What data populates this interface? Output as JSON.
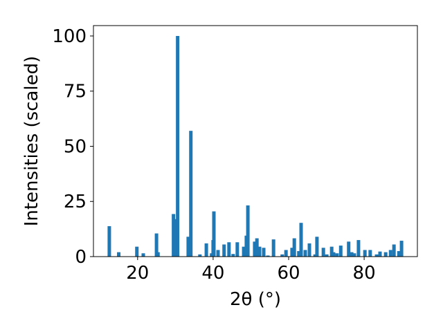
{
  "chart_data": {
    "type": "bar",
    "xlabel": "2θ (°)",
    "ylabel": "Intensities (scaled)",
    "color": "#1f77b4",
    "x": [
      12.5,
      15.0,
      19.8,
      21.5,
      25.0,
      25.4,
      29.5,
      30.1,
      30.6,
      33.4,
      34.1,
      36.5,
      38.2,
      39.6,
      40.0,
      40.2,
      41.3,
      42.9,
      44.2,
      45.3,
      46.4,
      48.1,
      48.8,
      49.2,
      51.0,
      51.6,
      52.3,
      53.4,
      54.5,
      56.0,
      58.3,
      59.3,
      60.9,
      61.5,
      62.7,
      63.3,
      64.4,
      65.5,
      67.0,
      67.5,
      69.2,
      70.1,
      71.4,
      71.9,
      72.8,
      73.8,
      75.9,
      76.7,
      77.4,
      78.5,
      80.2,
      81.6,
      83.3,
      84.2,
      85.7,
      87.0,
      87.9,
      89.2,
      89.9
    ],
    "values": [
      13.8,
      2,
      4.5,
      1.5,
      10.5,
      2,
      19.3,
      17,
      100,
      9,
      57,
      1,
      6,
      1.5,
      7.5,
      20.5,
      3,
      5.5,
      6.5,
      1.2,
      6.5,
      4.5,
      9.5,
      23.2,
      6.8,
      8.3,
      4.5,
      4,
      0.5,
      7.8,
      1,
      3,
      4,
      8.3,
      2.5,
      15.3,
      3,
      6,
      1,
      9,
      4,
      1,
      4.5,
      2,
      1.5,
      5,
      6.8,
      2,
      1.5,
      7.5,
      3,
      3,
      1,
      2.3,
      2,
      3,
      5.5,
      2.5,
      7.2
    ],
    "xlim": [
      8.3,
      94.1
    ],
    "ylim": [
      0,
      104.7
    ],
    "xticks": [
      20,
      40,
      60,
      80
    ],
    "yticks": [
      0,
      25,
      50,
      75,
      100
    ]
  }
}
